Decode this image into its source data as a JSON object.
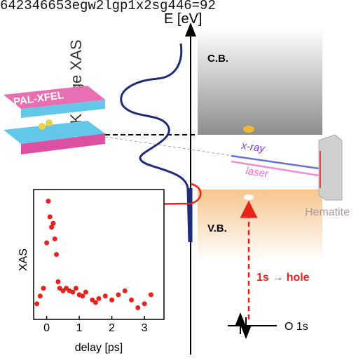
{
  "header": {
    "text": "642346653egw2lgp1x2sg446=92"
  },
  "energy_axis": {
    "label": "E [eV]"
  },
  "xas_label": "O K edge XAS",
  "bands": {
    "conduction": "C.B.",
    "valence": "V.B."
  },
  "source": "PAL-XFEL",
  "beams": {
    "xray": "x-ray",
    "laser": "laser"
  },
  "sample": "Hematite",
  "transition": "1s → hole",
  "core_level": "O 1s",
  "inset": {
    "ylabel": "XAS",
    "xlabel": "delay [ps]",
    "xlim": [
      -0.4,
      3.6
    ],
    "ylim": [
      0,
      1
    ],
    "xticks": [
      0,
      1,
      2,
      3
    ],
    "x": [
      -0.3,
      -0.2,
      -0.1,
      0,
      0.05,
      0.1,
      0.15,
      0.2,
      0.25,
      0.3,
      0.35,
      0.4,
      0.5,
      0.6,
      0.7,
      0.8,
      0.9,
      1.0,
      1.1,
      1.2,
      1.4,
      1.5,
      1.6,
      1.8,
      2.0,
      2.2,
      2.4,
      2.6,
      2.8,
      3.0,
      3.2
    ],
    "values": [
      0.12,
      0.18,
      0.24,
      0.59,
      0.91,
      0.79,
      0.71,
      0.74,
      0.62,
      0.5,
      0.29,
      0.24,
      0.22,
      0.24,
      0.22,
      0.21,
      0.24,
      0.19,
      0.18,
      0.21,
      0.15,
      0.13,
      0.16,
      0.18,
      0.15,
      0.19,
      0.22,
      0.15,
      0.09,
      0.12,
      0.19
    ],
    "color": "#e8231c"
  }
}
